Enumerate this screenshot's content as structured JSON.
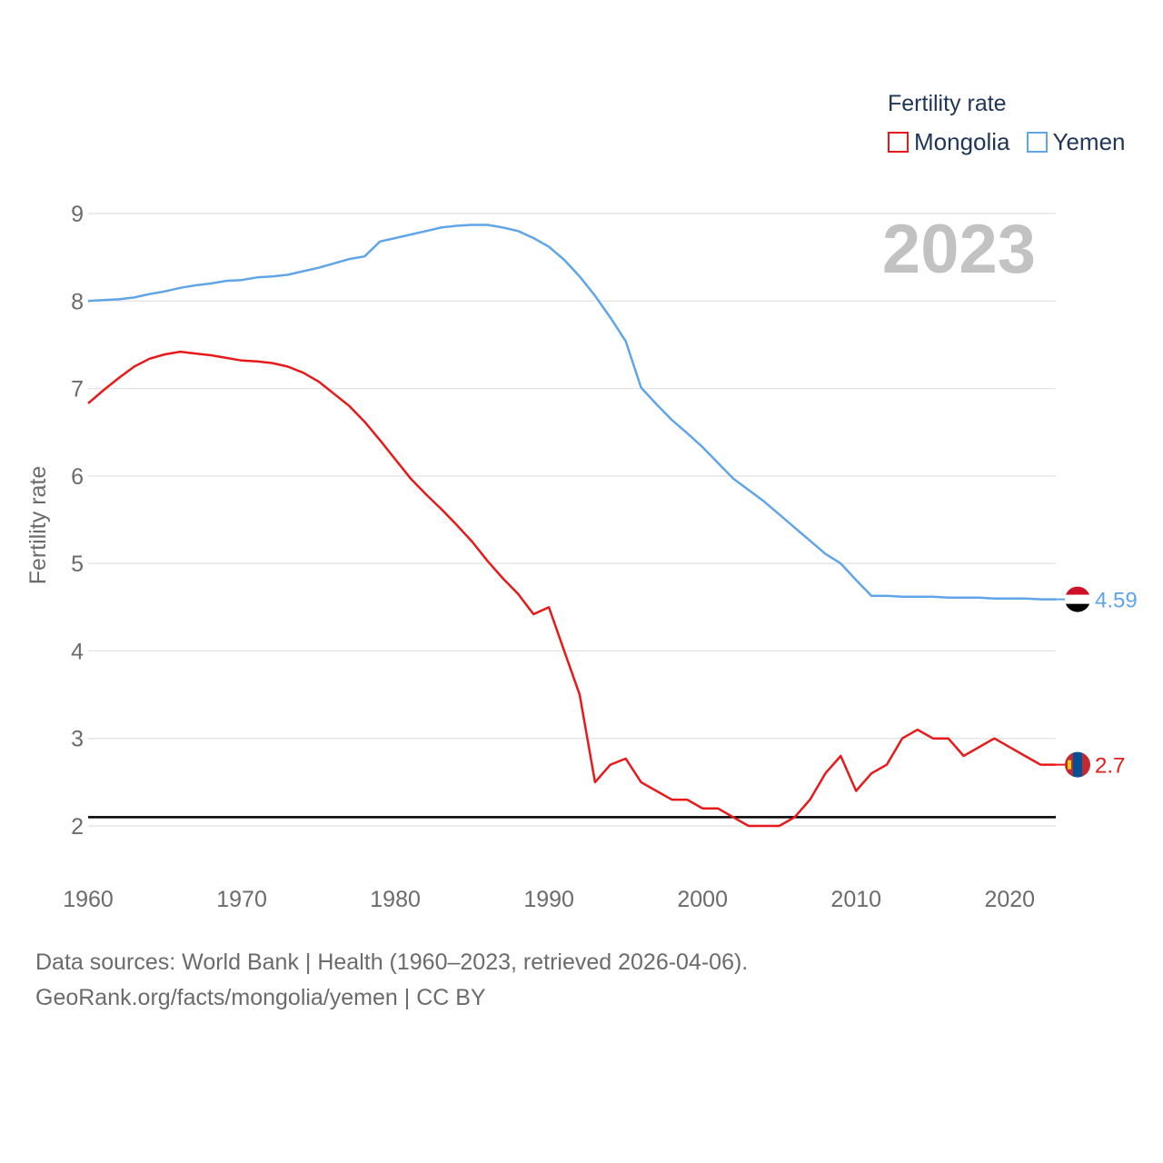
{
  "legend": {
    "title": "Fertility rate",
    "items": [
      {
        "name": "Mongolia",
        "color": "#e8191a"
      },
      {
        "name": "Yemen",
        "color": "#60a5e8"
      }
    ]
  },
  "year_label": "2023",
  "footer": {
    "line1": "Data sources: World Bank | Health (1960–2023, retrieved 2026-04-06).",
    "line2": "GeoRank.org/facts/mongolia/yemen | CC BY"
  },
  "chart_data": {
    "type": "line",
    "title": "",
    "xlabel": "",
    "ylabel": "Fertility rate",
    "xlim": [
      1960,
      2023
    ],
    "ylim": [
      2,
      9
    ],
    "x_ticks": [
      "1960",
      "1970",
      "1980",
      "1990",
      "2000",
      "2010",
      "2020"
    ],
    "y_ticks": [
      "2",
      "3",
      "4",
      "5",
      "6",
      "7",
      "8",
      "9"
    ],
    "reference_line": 2.1,
    "x": [
      1960,
      1961,
      1962,
      1963,
      1964,
      1965,
      1966,
      1967,
      1968,
      1969,
      1970,
      1971,
      1972,
      1973,
      1974,
      1975,
      1976,
      1977,
      1978,
      1979,
      1980,
      1981,
      1982,
      1983,
      1984,
      1985,
      1986,
      1987,
      1988,
      1989,
      1990,
      1991,
      1992,
      1993,
      1994,
      1995,
      1996,
      1997,
      1998,
      1999,
      2000,
      2001,
      2002,
      2003,
      2004,
      2005,
      2006,
      2007,
      2008,
      2009,
      2010,
      2011,
      2012,
      2013,
      2014,
      2015,
      2016,
      2017,
      2018,
      2019,
      2020,
      2021,
      2022,
      2023
    ],
    "series": [
      {
        "name": "Mongolia",
        "color": "#e8191a",
        "end_label": "2.7",
        "values": [
          6.83,
          6.98,
          7.12,
          7.25,
          7.34,
          7.39,
          7.42,
          7.4,
          7.38,
          7.35,
          7.32,
          7.31,
          7.29,
          7.25,
          7.18,
          7.08,
          6.94,
          6.8,
          6.62,
          6.41,
          6.19,
          5.97,
          5.79,
          5.62,
          5.44,
          5.25,
          5.03,
          4.83,
          4.65,
          4.42,
          4.5,
          4.0,
          3.5,
          2.5,
          2.7,
          2.77,
          2.5,
          2.4,
          2.3,
          2.3,
          2.2,
          2.2,
          2.1,
          2.0,
          2.0,
          2.0,
          2.1,
          2.3,
          2.6,
          2.8,
          2.4,
          2.6,
          2.7,
          3.0,
          3.1,
          3.0,
          3.0,
          2.8,
          2.9,
          3.0,
          2.9,
          2.8,
          2.7,
          2.7
        ]
      },
      {
        "name": "Yemen",
        "color": "#60a5e8",
        "end_label": "4.59",
        "values": [
          8.0,
          8.01,
          8.02,
          8.04,
          8.08,
          8.11,
          8.15,
          8.18,
          8.2,
          8.23,
          8.24,
          8.27,
          8.28,
          8.3,
          8.34,
          8.38,
          8.43,
          8.48,
          8.51,
          8.68,
          8.72,
          8.76,
          8.8,
          8.84,
          8.86,
          8.87,
          8.87,
          8.84,
          8.8,
          8.72,
          8.62,
          8.47,
          8.28,
          8.06,
          7.81,
          7.54,
          7.01,
          6.82,
          6.64,
          6.49,
          6.33,
          6.15,
          5.97,
          5.84,
          5.71,
          5.56,
          5.41,
          5.26,
          5.11,
          5.0,
          4.81,
          4.63,
          4.63,
          4.62,
          4.62,
          4.62,
          4.61,
          4.61,
          4.61,
          4.6,
          4.6,
          4.6,
          4.59,
          4.59
        ]
      }
    ]
  }
}
